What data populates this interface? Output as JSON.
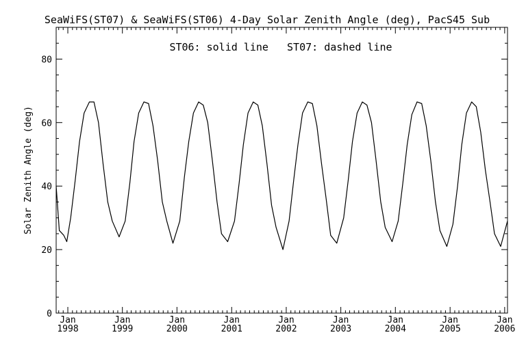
{
  "chart_data": {
    "type": "line",
    "title": "SeaWiFS(ST07) & SeaWiFS(ST06) 4-Day Solar Zenith Angle (deg), PacS45 Sub",
    "annotation": "ST06: solid line   ST07: dashed line",
    "xlabel": "",
    "ylabel": "Solar Zenith Angle (deg)",
    "xlim": [
      "1997-10-15",
      "2006-01-20"
    ],
    "ylim": [
      0,
      90
    ],
    "yticks": [
      0,
      20,
      40,
      60,
      80
    ],
    "xticks": [
      {
        "date": "1998-01-01",
        "month": "Jan",
        "year": "1998"
      },
      {
        "date": "1999-01-01",
        "month": "Jan",
        "year": "1999"
      },
      {
        "date": "2000-01-01",
        "month": "Jan",
        "year": "2000"
      },
      {
        "date": "2001-01-01",
        "month": "Jan",
        "year": "2001"
      },
      {
        "date": "2002-01-01",
        "month": "Jan",
        "year": "2002"
      },
      {
        "date": "2003-01-01",
        "month": "Jan",
        "year": "2003"
      },
      {
        "date": "2004-01-01",
        "month": "Jan",
        "year": "2004"
      },
      {
        "date": "2005-01-01",
        "month": "Jan",
        "year": "2005"
      },
      {
        "date": "2006-01-01",
        "month": "Jan",
        "year": "2006"
      }
    ],
    "grid": false,
    "series": [
      {
        "name": "ST06",
        "style": "solid",
        "color": "#000000",
        "points": [
          {
            "x": "1997-10-15",
            "y": 40.0
          },
          {
            "x": "1997-11-05",
            "y": 26.0
          },
          {
            "x": "1997-12-05",
            "y": 24.5
          },
          {
            "x": "1997-12-25",
            "y": 22.5
          },
          {
            "x": "1998-01-20",
            "y": 30.0
          },
          {
            "x": "1998-02-20",
            "y": 42.0
          },
          {
            "x": "1998-03-20",
            "y": 54.0
          },
          {
            "x": "1998-04-20",
            "y": 63.0
          },
          {
            "x": "1998-05-25",
            "y": 66.5
          },
          {
            "x": "1998-06-25",
            "y": 66.5
          },
          {
            "x": "1998-07-25",
            "y": 60.0
          },
          {
            "x": "1998-08-25",
            "y": 47.0
          },
          {
            "x": "1998-09-25",
            "y": 35.0
          },
          {
            "x": "1998-10-25",
            "y": 29.0
          },
          {
            "x": "1998-12-10",
            "y": 24.0
          },
          {
            "x": "1999-01-20",
            "y": 29.0
          },
          {
            "x": "1999-02-20",
            "y": 41.0
          },
          {
            "x": "1999-03-20",
            "y": 54.0
          },
          {
            "x": "1999-04-20",
            "y": 63.0
          },
          {
            "x": "1999-05-25",
            "y": 66.5
          },
          {
            "x": "1999-06-25",
            "y": 66.0
          },
          {
            "x": "1999-07-25",
            "y": 59.0
          },
          {
            "x": "1999-08-25",
            "y": 48.0
          },
          {
            "x": "1999-09-25",
            "y": 35.0
          },
          {
            "x": "1999-10-25",
            "y": 29.0
          },
          {
            "x": "1999-12-05",
            "y": 22.0
          },
          {
            "x": "2000-01-20",
            "y": 29.0
          },
          {
            "x": "2000-02-20",
            "y": 43.0
          },
          {
            "x": "2000-03-20",
            "y": 54.0
          },
          {
            "x": "2000-04-20",
            "y": 63.0
          },
          {
            "x": "2000-05-25",
            "y": 66.5
          },
          {
            "x": "2000-06-25",
            "y": 65.5
          },
          {
            "x": "2000-07-25",
            "y": 60.0
          },
          {
            "x": "2000-08-25",
            "y": 48.0
          },
          {
            "x": "2000-09-25",
            "y": 35.0
          },
          {
            "x": "2000-10-25",
            "y": 25.0
          },
          {
            "x": "2000-12-05",
            "y": 22.5
          },
          {
            "x": "2001-01-20",
            "y": 29.0
          },
          {
            "x": "2001-02-20",
            "y": 41.0
          },
          {
            "x": "2001-03-20",
            "y": 53.0
          },
          {
            "x": "2001-04-20",
            "y": 63.0
          },
          {
            "x": "2001-05-25",
            "y": 66.5
          },
          {
            "x": "2001-06-25",
            "y": 65.5
          },
          {
            "x": "2001-07-25",
            "y": 59.0
          },
          {
            "x": "2001-08-25",
            "y": 47.0
          },
          {
            "x": "2001-09-25",
            "y": 34.0
          },
          {
            "x": "2001-10-25",
            "y": 27.0
          },
          {
            "x": "2001-12-10",
            "y": 20.0
          },
          {
            "x": "2002-01-20",
            "y": 29.0
          },
          {
            "x": "2002-02-20",
            "y": 42.0
          },
          {
            "x": "2002-03-20",
            "y": 53.0
          },
          {
            "x": "2002-04-20",
            "y": 63.0
          },
          {
            "x": "2002-05-25",
            "y": 66.5
          },
          {
            "x": "2002-06-25",
            "y": 66.0
          },
          {
            "x": "2002-07-25",
            "y": 59.0
          },
          {
            "x": "2002-08-25",
            "y": 47.0
          },
          {
            "x": "2002-09-25",
            "y": 36.0
          },
          {
            "x": "2002-10-25",
            "y": 24.5
          },
          {
            "x": "2002-12-05",
            "y": 22.0
          },
          {
            "x": "2003-01-20",
            "y": 30.0
          },
          {
            "x": "2003-02-20",
            "y": 42.0
          },
          {
            "x": "2003-03-20",
            "y": 54.0
          },
          {
            "x": "2003-04-20",
            "y": 63.0
          },
          {
            "x": "2003-05-25",
            "y": 66.5
          },
          {
            "x": "2003-06-25",
            "y": 65.5
          },
          {
            "x": "2003-07-25",
            "y": 60.0
          },
          {
            "x": "2003-08-25",
            "y": 48.0
          },
          {
            "x": "2003-09-25",
            "y": 35.0
          },
          {
            "x": "2003-10-25",
            "y": 27.0
          },
          {
            "x": "2003-12-10",
            "y": 22.5
          },
          {
            "x": "2004-01-20",
            "y": 29.0
          },
          {
            "x": "2004-02-20",
            "y": 41.0
          },
          {
            "x": "2004-03-20",
            "y": 53.0
          },
          {
            "x": "2004-04-20",
            "y": 62.5
          },
          {
            "x": "2004-05-25",
            "y": 66.5
          },
          {
            "x": "2004-06-25",
            "y": 66.0
          },
          {
            "x": "2004-07-25",
            "y": 59.0
          },
          {
            "x": "2004-08-25",
            "y": 48.0
          },
          {
            "x": "2004-09-25",
            "y": 35.0
          },
          {
            "x": "2004-10-25",
            "y": 26.0
          },
          {
            "x": "2004-12-10",
            "y": 21.0
          },
          {
            "x": "2005-01-20",
            "y": 28.0
          },
          {
            "x": "2005-02-20",
            "y": 40.0
          },
          {
            "x": "2005-03-20",
            "y": 53.0
          },
          {
            "x": "2005-04-20",
            "y": 63.0
          },
          {
            "x": "2005-05-25",
            "y": 66.5
          },
          {
            "x": "2005-06-25",
            "y": 65.0
          },
          {
            "x": "2005-07-25",
            "y": 57.0
          },
          {
            "x": "2005-08-25",
            "y": 45.0
          },
          {
            "x": "2005-09-25",
            "y": 35.0
          },
          {
            "x": "2005-10-25",
            "y": 25.0
          },
          {
            "x": "2005-12-05",
            "y": 21.0
          },
          {
            "x": "2006-01-20",
            "y": 29.0
          }
        ]
      }
    ]
  }
}
